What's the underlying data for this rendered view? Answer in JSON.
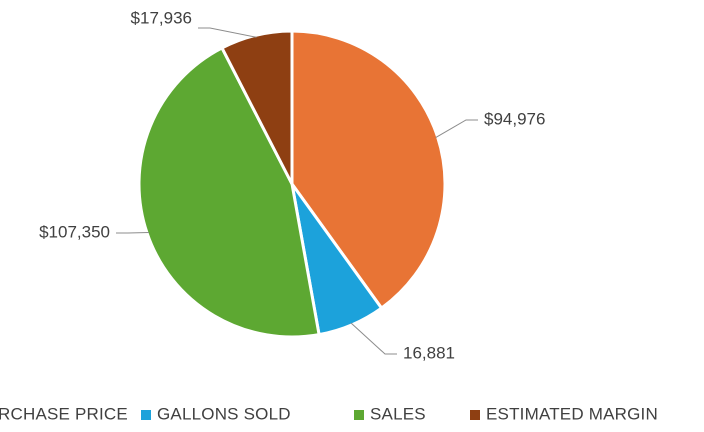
{
  "chart_data": {
    "type": "pie",
    "title": "",
    "categories": [
      "PURCHASE PRICE",
      "GALLONS SOLD",
      "SALES",
      "ESTIMATED MARGIN"
    ],
    "values": [
      94976,
      16881,
      107350,
      17936
    ],
    "data_labels": [
      "$94,976",
      "16,881",
      "$107,350",
      "$17,936"
    ],
    "colors": [
      "#E87435",
      "#1CA2DB",
      "#5DA832",
      "#8E3F12"
    ],
    "legend_position": "bottom",
    "legend": [
      {
        "label": "PURCHASE PRICE",
        "color": "#E87435"
      },
      {
        "label": "GALLONS SOLD",
        "color": "#1CA2DB"
      },
      {
        "label": "SALES",
        "color": "#5DA832"
      },
      {
        "label": "ESTIMATED MARGIN",
        "color": "#8E3F12"
      }
    ]
  }
}
